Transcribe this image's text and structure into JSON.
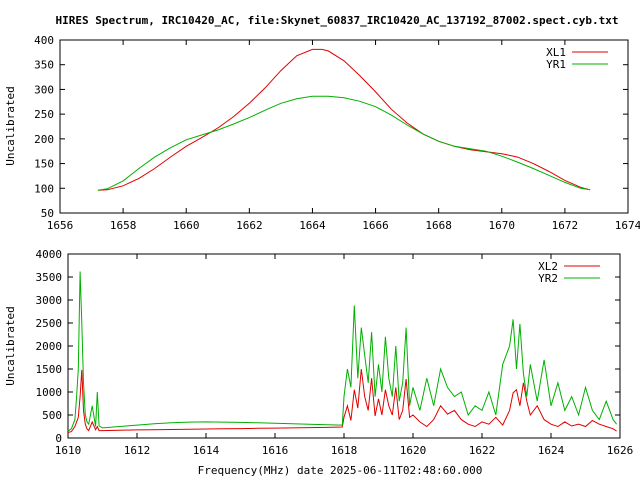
{
  "title": "HIRES Spectrum, IRC10420_AC, file:Skynet_60837_IRC10420_AC_137192_87002.spect.cyb.txt",
  "xlabel": "Frequency(MHz) date 2025-06-11T02:48:60.000",
  "colors": {
    "xl": "#e00000",
    "yr": "#00b000",
    "axis": "#000000"
  },
  "chart_data": [
    {
      "type": "line",
      "ylabel": "Uncalibrated",
      "xlim": [
        1656,
        1674
      ],
      "ylim": [
        50,
        400
      ],
      "xticks": [
        1656,
        1658,
        1660,
        1662,
        1664,
        1666,
        1668,
        1670,
        1672,
        1674
      ],
      "yticks": [
        50,
        100,
        150,
        200,
        250,
        300,
        350,
        400
      ],
      "legend_position": "top-right",
      "series": [
        {
          "name": "XL1",
          "color": "#e00000",
          "x": [
            1657.2,
            1657.5,
            1658,
            1658.5,
            1659,
            1659.5,
            1660,
            1660.5,
            1661,
            1661.5,
            1662,
            1662.5,
            1663,
            1663.5,
            1664,
            1664.3,
            1664.5,
            1665,
            1665.5,
            1666,
            1666.5,
            1667,
            1667.5,
            1668,
            1668.5,
            1669,
            1669.5,
            1670,
            1670.5,
            1671,
            1671.5,
            1672,
            1672.5,
            1672.8
          ],
          "y": [
            96,
            97,
            105,
            120,
            140,
            163,
            185,
            203,
            222,
            245,
            272,
            303,
            338,
            368,
            381,
            381,
            378,
            358,
            328,
            295,
            260,
            232,
            210,
            195,
            185,
            178,
            174,
            170,
            163,
            150,
            134,
            116,
            102,
            97
          ]
        },
        {
          "name": "YR1",
          "color": "#00b000",
          "x": [
            1657.2,
            1657.5,
            1658,
            1658.5,
            1659,
            1659.5,
            1660,
            1660.5,
            1661,
            1661.5,
            1662,
            1662.5,
            1663,
            1663.5,
            1664,
            1664.5,
            1665,
            1665.5,
            1666,
            1666.5,
            1667,
            1667.5,
            1668,
            1668.5,
            1669,
            1669.5,
            1670,
            1670.5,
            1671,
            1671.5,
            1672,
            1672.5,
            1672.8
          ],
          "y": [
            96,
            99,
            115,
            140,
            163,
            182,
            198,
            208,
            218,
            230,
            243,
            258,
            272,
            281,
            286,
            286,
            283,
            276,
            265,
            248,
            228,
            210,
            195,
            185,
            180,
            175,
            165,
            153,
            140,
            126,
            112,
            100,
            97
          ]
        }
      ]
    },
    {
      "type": "line",
      "ylabel": "Uncalibrated",
      "xlim": [
        1610,
        1626
      ],
      "ylim": [
        0,
        4000
      ],
      "xticks": [
        1610,
        1612,
        1614,
        1616,
        1618,
        1620,
        1622,
        1624,
        1626
      ],
      "yticks": [
        0,
        500,
        1000,
        1500,
        2000,
        2500,
        3000,
        3500,
        4000
      ],
      "legend_position": "top-right",
      "series": [
        {
          "name": "XL2",
          "color": "#e00000",
          "x": [
            1610.0,
            1610.1,
            1610.2,
            1610.3,
            1610.35,
            1610.4,
            1610.45,
            1610.5,
            1610.55,
            1610.6,
            1610.7,
            1610.8,
            1610.85,
            1610.9,
            1611.0,
            1611.5,
            1612.0,
            1612.5,
            1613.0,
            1613.5,
            1614.0,
            1614.5,
            1615.0,
            1615.5,
            1616.0,
            1616.5,
            1617.0,
            1617.5,
            1617.95,
            1618.0,
            1618.1,
            1618.2,
            1618.3,
            1618.4,
            1618.5,
            1618.6,
            1618.7,
            1618.8,
            1618.9,
            1619.0,
            1619.1,
            1619.2,
            1619.3,
            1619.4,
            1619.5,
            1619.6,
            1619.7,
            1619.8,
            1619.9,
            1620.0,
            1620.2,
            1620.4,
            1620.6,
            1620.8,
            1621.0,
            1621.2,
            1621.4,
            1621.6,
            1621.8,
            1622.0,
            1622.2,
            1622.4,
            1622.6,
            1622.8,
            1622.9,
            1623.0,
            1623.1,
            1623.2,
            1623.3,
            1623.4,
            1623.6,
            1623.8,
            1624.0,
            1624.2,
            1624.4,
            1624.6,
            1624.8,
            1625.0,
            1625.2,
            1625.4,
            1625.6,
            1625.8,
            1625.9
          ],
          "y": [
            120,
            140,
            250,
            450,
            900,
            1480,
            600,
            300,
            200,
            160,
            350,
            180,
            250,
            160,
            160,
            170,
            175,
            180,
            185,
            190,
            195,
            200,
            205,
            210,
            215,
            220,
            225,
            230,
            240,
            450,
            700,
            380,
            1050,
            650,
            1500,
            900,
            600,
            1300,
            480,
            850,
            500,
            1050,
            700,
            500,
            1100,
            400,
            600,
            1280,
            450,
            500,
            350,
            250,
            400,
            700,
            520,
            600,
            400,
            300,
            250,
            350,
            300,
            450,
            280,
            600,
            980,
            1050,
            700,
            1200,
            800,
            500,
            700,
            400,
            300,
            250,
            350,
            260,
            300,
            250,
            380,
            300,
            250,
            200,
            150
          ]
        },
        {
          "name": "YR2",
          "color": "#00b000",
          "x": [
            1610.0,
            1610.1,
            1610.2,
            1610.25,
            1610.3,
            1610.35,
            1610.4,
            1610.45,
            1610.5,
            1610.55,
            1610.6,
            1610.7,
            1610.8,
            1610.85,
            1610.9,
            1611.0,
            1611.5,
            1612.0,
            1612.5,
            1613.0,
            1613.5,
            1614.0,
            1614.5,
            1615.0,
            1615.5,
            1616.0,
            1616.5,
            1617.0,
            1617.5,
            1617.95,
            1618.0,
            1618.1,
            1618.2,
            1618.3,
            1618.4,
            1618.5,
            1618.6,
            1618.7,
            1618.8,
            1618.9,
            1619.0,
            1619.1,
            1619.2,
            1619.3,
            1619.4,
            1619.5,
            1619.6,
            1619.7,
            1619.8,
            1619.9,
            1620.0,
            1620.2,
            1620.4,
            1620.6,
            1620.8,
            1621.0,
            1621.2,
            1621.4,
            1621.6,
            1621.8,
            1622.0,
            1622.2,
            1622.4,
            1622.6,
            1622.8,
            1622.9,
            1623.0,
            1623.1,
            1623.2,
            1623.3,
            1623.4,
            1623.6,
            1623.8,
            1624.0,
            1624.2,
            1624.4,
            1624.6,
            1624.8,
            1625.0,
            1625.2,
            1625.4,
            1625.6,
            1625.8,
            1625.9
          ],
          "y": [
            150,
            200,
            400,
            900,
            1500,
            3620,
            2500,
            1200,
            500,
            350,
            300,
            700,
            250,
            1000,
            260,
            220,
            250,
            280,
            310,
            330,
            345,
            350,
            345,
            340,
            330,
            320,
            310,
            300,
            290,
            280,
            900,
            1500,
            1100,
            2880,
            1300,
            2400,
            1800,
            1200,
            2300,
            900,
            1600,
            1000,
            2200,
            1300,
            900,
            2000,
            800,
            1200,
            2400,
            700,
            1100,
            600,
            1300,
            700,
            1500,
            1100,
            900,
            1000,
            500,
            700,
            600,
            1000,
            500,
            1600,
            2000,
            2580,
            1500,
            2480,
            1400,
            900,
            1600,
            800,
            1700,
            700,
            1200,
            600,
            900,
            500,
            1100,
            600,
            400,
            800,
            400,
            300
          ]
        }
      ]
    }
  ]
}
